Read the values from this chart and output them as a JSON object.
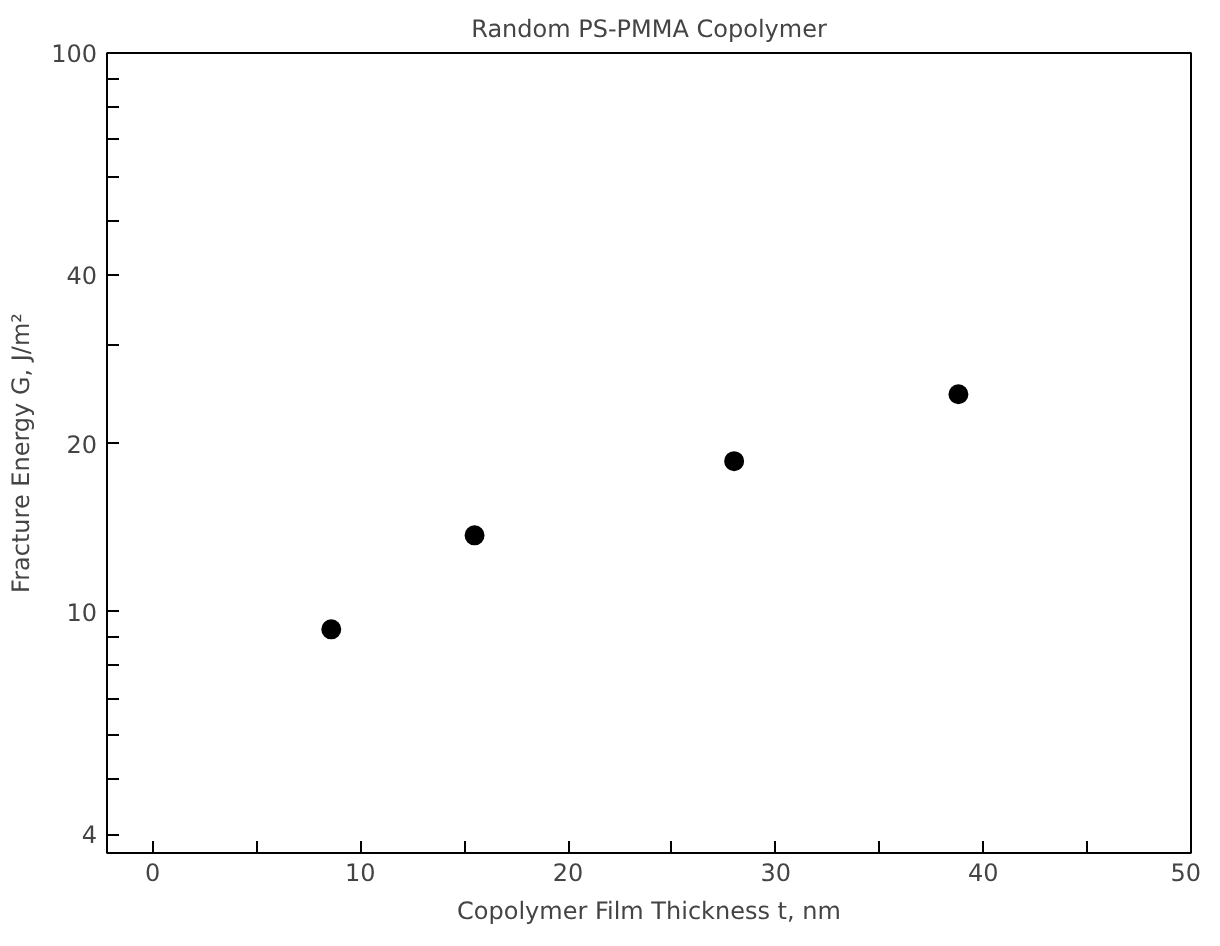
{
  "chart_data": {
    "type": "scatter",
    "title": "Random PS-PMMA Copolymer",
    "xlabel": "Copolymer Film Thickness t, nm",
    "ylabel": "Fracture Energy G, J/m²",
    "x": [
      8.6,
      15.5,
      28.0,
      38.8
    ],
    "series": [
      {
        "color": "#000000",
        "values": [
          9.3,
          13.7,
          18.6,
          24.5
        ]
      }
    ],
    "log": "y",
    "xlim": [
      -2.2,
      50
    ],
    "ylim": [
      3.7,
      100
    ],
    "xticks": [
      0,
      {
        "value": 5,
        "label": null
      },
      10,
      {
        "value": 15,
        "label": null
      },
      20,
      {
        "value": 25,
        "label": null
      },
      30,
      {
        "value": 35,
        "label": null
      },
      40,
      {
        "value": 45,
        "label": null
      },
      50
    ],
    "yticks": [
      4,
      {
        "value": 5,
        "label": null
      },
      {
        "value": 6,
        "label": null
      },
      {
        "value": 7,
        "label": null
      },
      {
        "value": 8,
        "label": null
      },
      {
        "value": 9,
        "label": null
      },
      10,
      {
        "value": 30,
        "label": null
      },
      20,
      40,
      {
        "value": 50,
        "label": null
      },
      {
        "value": 60,
        "label": null
      },
      {
        "value": 70,
        "label": null
      },
      {
        "value": 80,
        "label": null
      },
      {
        "value": 90,
        "label": null
      },
      100
    ],
    "marker": "circle",
    "grid": false
  }
}
